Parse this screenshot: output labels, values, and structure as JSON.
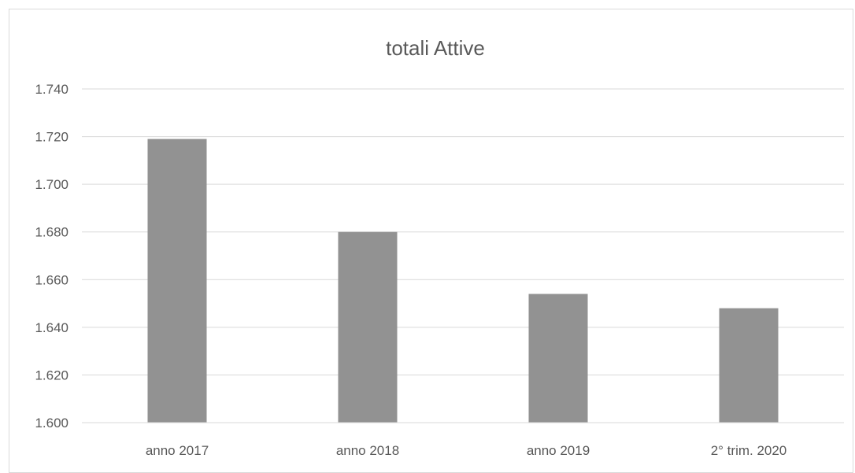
{
  "chart_data": {
    "type": "bar",
    "title": "totali Attive",
    "xlabel": "",
    "ylabel": "",
    "categories": [
      "anno 2017",
      "anno 2018",
      "anno 2019",
      "2° trim. 2020"
    ],
    "values": [
      1719,
      1680,
      1654,
      1648
    ],
    "ylim": [
      1600,
      1740
    ],
    "y_ticks": [
      1600,
      1620,
      1640,
      1660,
      1680,
      1700,
      1720,
      1740
    ],
    "y_tick_labels": [
      "1.600",
      "1.620",
      "1.640",
      "1.660",
      "1.680",
      "1.700",
      "1.720",
      "1.740"
    ],
    "grid": true,
    "legend": "none",
    "bar_color": "#929292"
  }
}
